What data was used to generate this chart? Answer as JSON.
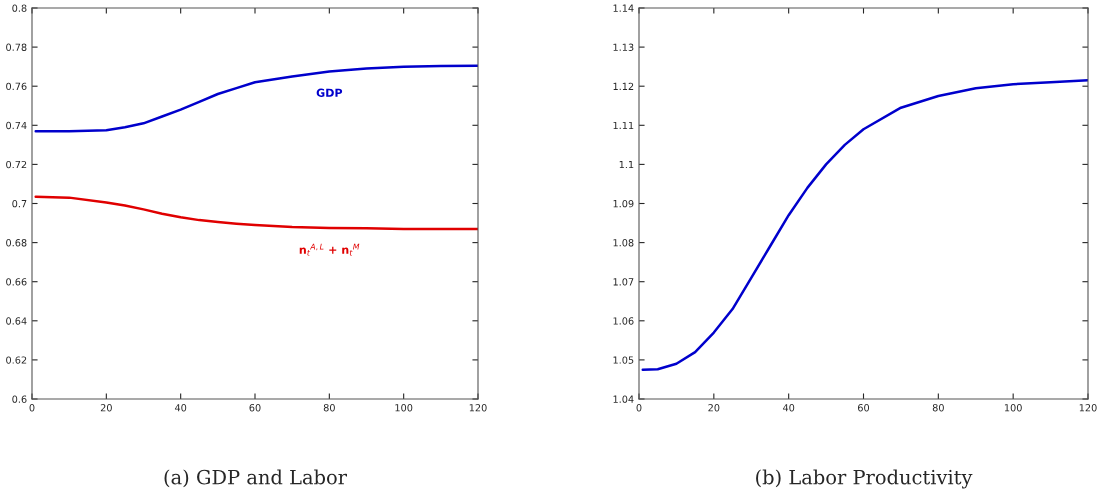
{
  "chart_data": [
    {
      "type": "line",
      "title": "(a) GDP and Labor",
      "x": [
        1,
        10,
        20,
        25,
        30,
        35,
        40,
        45,
        50,
        55,
        60,
        70,
        80,
        90,
        100,
        110,
        120
      ],
      "series": [
        {
          "name": "GDP",
          "color": "#0000cc",
          "values": [
            0.737,
            0.737,
            0.7375,
            0.739,
            0.741,
            0.7445,
            0.748,
            0.752,
            0.756,
            0.759,
            0.762,
            0.765,
            0.7675,
            0.769,
            0.77,
            0.7703,
            0.7705
          ]
        },
        {
          "name": "n$_{t}$$^{A,L}$ + n$_{t}$$^{M}$",
          "color": "#e00000",
          "values": [
            0.7035,
            0.703,
            0.7005,
            0.699,
            0.697,
            0.6948,
            0.693,
            0.6915,
            0.6905,
            0.6897,
            0.689,
            0.688,
            0.6875,
            0.6873,
            0.687,
            0.687,
            0.687
          ]
        }
      ],
      "xlim": [
        0,
        120
      ],
      "xticks": [
        0,
        20,
        40,
        60,
        80,
        100,
        120
      ],
      "ylim": [
        0.6,
        0.8
      ],
      "yticks": [
        0.6,
        0.62,
        0.64,
        0.66,
        0.68,
        0.7,
        0.72,
        0.74,
        0.76,
        0.78,
        0.8
      ],
      "grid": false
    },
    {
      "type": "line",
      "title": "(b) Labor Productivity",
      "x": [
        1,
        5,
        10,
        15,
        20,
        25,
        30,
        35,
        40,
        45,
        50,
        55,
        60,
        70,
        80,
        90,
        100,
        110,
        120
      ],
      "series": [
        {
          "color": "#0000cc",
          "values": [
            1.0475,
            1.0476,
            1.049,
            1.052,
            1.057,
            1.063,
            1.071,
            1.079,
            1.087,
            1.094,
            1.1,
            1.105,
            1.109,
            1.1145,
            1.1175,
            1.1195,
            1.1205,
            1.121,
            1.1215
          ]
        }
      ],
      "xlim": [
        0,
        120
      ],
      "xticks": [
        0,
        20,
        40,
        60,
        80,
        100,
        120
      ],
      "ylim": [
        1.04,
        1.14
      ],
      "yticks": [
        1.04,
        1.05,
        1.06,
        1.07,
        1.08,
        1.09,
        1.1,
        1.11,
        1.12,
        1.13,
        1.14
      ],
      "grid": false
    }
  ]
}
